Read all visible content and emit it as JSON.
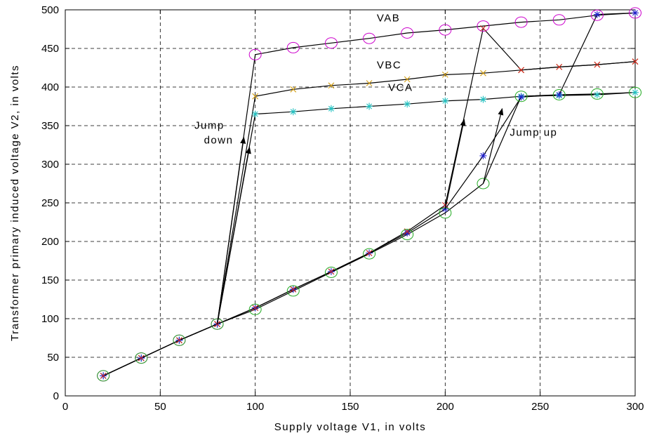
{
  "chart_data": {
    "type": "line",
    "title": "",
    "xlabel": "Supply voltage V1, in volts",
    "ylabel": "Transformer primary induced voltage V2, in volts",
    "xlim": [
      0,
      300
    ],
    "ylim": [
      0,
      500
    ],
    "xticks": [
      0,
      50,
      100,
      150,
      200,
      250,
      300
    ],
    "yticks": [
      0,
      50,
      100,
      150,
      200,
      250,
      300,
      350,
      400,
      450,
      500
    ],
    "grid": true,
    "colors": {
      "VAB": "#cc00cc",
      "VBC": "#d4a017",
      "VCA": "#22c1c1",
      "up_series_star": "#2222cc",
      "up_series_x": "#cc2222",
      "up_series_circle": "#22aa22",
      "line": "#000000"
    },
    "series": [
      {
        "name": "VAB",
        "marker": "circle",
        "x": [
          20,
          40,
          60,
          80,
          100,
          120,
          140,
          160,
          180,
          200,
          220,
          240,
          260,
          280,
          300
        ],
        "y": [
          26,
          49,
          72,
          93,
          442,
          451,
          457,
          463,
          470,
          474,
          479,
          484,
          487,
          493,
          496
        ]
      },
      {
        "name": "VBC",
        "marker": "x",
        "x": [
          20,
          40,
          60,
          80,
          100,
          120,
          140,
          160,
          180,
          200,
          220,
          240,
          260,
          280,
          300
        ],
        "y": [
          26,
          49,
          72,
          93,
          388,
          397,
          402,
          405,
          410,
          416,
          418,
          422,
          426,
          429,
          433
        ]
      },
      {
        "name": "VCA",
        "marker": "star",
        "x": [
          20,
          40,
          60,
          80,
          100,
          120,
          140,
          160,
          180,
          200,
          220,
          240,
          260,
          280,
          300
        ],
        "y": [
          26,
          49,
          72,
          93,
          365,
          368,
          372,
          375,
          378,
          382,
          384,
          388,
          389,
          390,
          393
        ]
      },
      {
        "marker": "star",
        "x": [
          20,
          40,
          60,
          80,
          100,
          120,
          140,
          160,
          180,
          200,
          220,
          240,
          260,
          280,
          300
        ],
        "y": [
          26,
          49,
          72,
          93,
          114,
          138,
          161,
          185,
          211,
          242,
          311,
          387,
          390,
          494,
          496
        ]
      },
      {
        "marker": "x",
        "x": [
          20,
          40,
          60,
          80,
          100,
          120,
          140,
          160,
          180,
          200,
          220,
          240,
          260,
          280,
          300
        ],
        "y": [
          26,
          49,
          72,
          93,
          114,
          138,
          161,
          185,
          213,
          247,
          476,
          422,
          426,
          429,
          433
        ]
      },
      {
        "marker": "circle",
        "x": [
          20,
          40,
          60,
          80,
          100,
          120,
          140,
          160,
          180,
          200,
          220,
          240,
          260,
          280,
          300
        ],
        "y": [
          26,
          49,
          72,
          93,
          112,
          136,
          160,
          184,
          209,
          237,
          275,
          388,
          390,
          391,
          393
        ]
      }
    ],
    "jump_down_arrows": [
      {
        "from": [
          80,
          93
        ],
        "to": [
          94,
          335
        ]
      },
      {
        "from": [
          80,
          93
        ],
        "to": [
          97,
          322
        ]
      }
    ],
    "jump_up_arrows": [
      {
        "from": [
          200,
          242
        ],
        "to": [
          210,
          358
        ]
      },
      {
        "from": [
          220,
          275
        ],
        "to": [
          230,
          372
        ]
      }
    ],
    "annotations": [
      {
        "text": "VAB",
        "x": 164,
        "y": 485
      },
      {
        "text": "VBC",
        "x": 164,
        "y": 424
      },
      {
        "text": "VCA",
        "x": 170,
        "y": 395
      },
      {
        "text": "Jump",
        "x": 68,
        "y": 346
      },
      {
        "text": "down",
        "x": 73,
        "y": 327
      },
      {
        "text": "Jump up",
        "x": 234,
        "y": 337
      }
    ]
  }
}
